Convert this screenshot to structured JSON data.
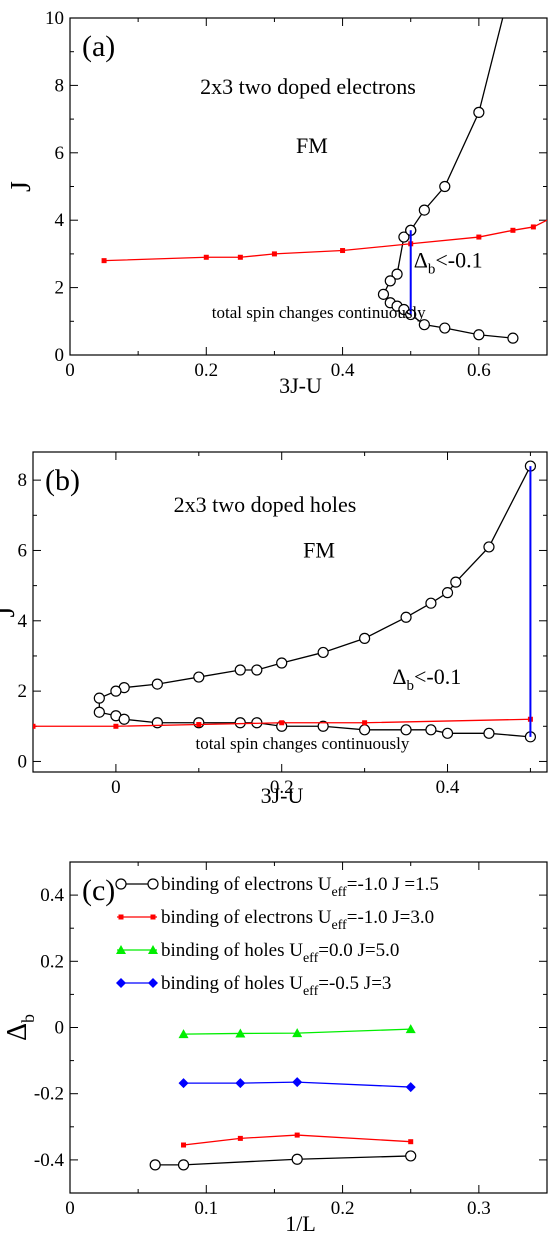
{
  "chart_data": [
    {
      "panel_label": "(a)",
      "type": "line",
      "title": "2x3  two doped electrons",
      "xlabel": "3J-U",
      "ylabel": "J",
      "xlim": [
        0,
        0.7
      ],
      "ylim": [
        0,
        10
      ],
      "xticks": [
        0,
        0.2,
        0.4,
        0.6
      ],
      "xtick_labels": [
        "0",
        "0.2",
        "0.4",
        "0.6"
      ],
      "yticks": [
        0,
        2,
        4,
        6,
        8,
        10
      ],
      "ytick_labels": [
        "0",
        "2",
        "4",
        "6",
        "8",
        "10"
      ],
      "annotations": [
        {
          "id": "fm",
          "text": "FM",
          "x": 0.355,
          "y": 6.0
        },
        {
          "id": "delta",
          "text": "Δ",
          "sub": "b",
          "suffix": "<-0.1",
          "x": 0.555,
          "y": 2.6
        },
        {
          "id": "spin",
          "text": "total spin changes continuously",
          "x": 0.365,
          "y": 1.1
        }
      ],
      "series": [
        {
          "style": "black-circles",
          "x": [
            0.5,
            0.49,
            0.48,
            0.47,
            0.46,
            0.47,
            0.48,
            0.49,
            0.5,
            0.52,
            0.55,
            0.6,
            0.65
          ],
          "y": [
            3.7,
            3.5,
            2.4,
            2.2,
            1.8,
            1.55,
            1.45,
            1.35,
            1.2,
            0.9,
            0.8,
            0.6,
            0.5
          ]
        },
        {
          "style": "black-circles-upper",
          "x": [
            0.5,
            0.52,
            0.55,
            0.6,
            0.635
          ],
          "y": [
            3.7,
            4.3,
            5.0,
            7.2,
            10.0
          ],
          "marker_count": 4
        },
        {
          "style": "red-squares",
          "x": [
            0.05,
            0.2,
            0.25,
            0.3,
            0.4,
            0.5,
            0.6,
            0.65,
            0.68,
            0.7
          ],
          "y": [
            2.8,
            2.9,
            2.9,
            3.0,
            3.1,
            3.3,
            3.5,
            3.7,
            3.8,
            4.0
          ],
          "marker_count": 9
        },
        {
          "style": "blue-vertical",
          "x": [
            0.5,
            0.5
          ],
          "y": [
            1.2,
            3.7
          ]
        }
      ]
    },
    {
      "panel_label": "(b)",
      "type": "line",
      "title": "2x3 two doped holes",
      "xlabel": "3J-U",
      "ylabel": "J",
      "xlim": [
        -0.1,
        0.52
      ],
      "ylim": [
        -0.3,
        8.8
      ],
      "xticks": [
        0,
        0.2,
        0.4
      ],
      "xtick_labels": [
        "0",
        "0.2",
        "0.4"
      ],
      "yticks": [
        0,
        2,
        4,
        6,
        8
      ],
      "ytick_labels": [
        "0",
        "2",
        "4",
        "6",
        "8"
      ],
      "annotations": [
        {
          "id": "fm",
          "text": "FM",
          "x": 0.245,
          "y": 5.8
        },
        {
          "id": "delta",
          "text": "Δ",
          "sub": "b",
          "suffix": "<-0.1",
          "x": 0.375,
          "y": 2.2
        },
        {
          "id": "spin",
          "text": "total spin changes continuously",
          "x": 0.225,
          "y": 0.35
        }
      ],
      "series": [
        {
          "style": "black-circles",
          "x": [
            0.5,
            0.45,
            0.41,
            0.4,
            0.38,
            0.35,
            0.3,
            0.25,
            0.2,
            0.17,
            0.15,
            0.1,
            0.05,
            0.01,
            0.0,
            -0.02,
            -0.02,
            0.0,
            0.01,
            0.05,
            0.1,
            0.15,
            0.17,
            0.2,
            0.25,
            0.3,
            0.35,
            0.38,
            0.4,
            0.45,
            0.5
          ],
          "y": [
            8.4,
            6.1,
            5.1,
            4.8,
            4.5,
            4.1,
            3.5,
            3.1,
            2.8,
            2.6,
            2.6,
            2.4,
            2.2,
            2.1,
            2.0,
            1.8,
            1.4,
            1.3,
            1.2,
            1.1,
            1.1,
            1.1,
            1.1,
            1.0,
            1.0,
            0.9,
            0.9,
            0.9,
            0.8,
            0.8,
            0.7
          ]
        },
        {
          "style": "red-squares",
          "x": [
            -0.1,
            0.0,
            0.1,
            0.2,
            0.3,
            0.5
          ],
          "y": [
            1.0,
            1.0,
            1.05,
            1.1,
            1.1,
            1.2
          ]
        },
        {
          "style": "blue-vertical",
          "x": [
            0.5,
            0.5
          ],
          "y": [
            0.7,
            8.4
          ]
        }
      ]
    },
    {
      "panel_label": "(c)",
      "type": "line",
      "xlabel": "1/L",
      "ylabel": "Δ",
      "ylabel_sub": "b",
      "xlim": [
        0,
        0.35
      ],
      "ylim": [
        -0.5,
        0.5
      ],
      "xticks": [
        0,
        0.1,
        0.2,
        0.3
      ],
      "xtick_labels": [
        "0",
        "0.1",
        "0.2",
        "0.3"
      ],
      "yticks": [
        -0.4,
        -0.2,
        0,
        0.2,
        0.4
      ],
      "ytick_labels": [
        "-0.4",
        "-0.2",
        "0",
        "0.2",
        "0.4"
      ],
      "legend_position": "top-right",
      "series": [
        {
          "name": "binding of electrons U",
          "name_sub": "eff",
          "name_tail": "=-1.0 J =1.5",
          "style": "black-circles",
          "color": "#000000",
          "x": [
            0.0625,
            0.0833,
            0.1667,
            0.25
          ],
          "y": [
            -0.415,
            -0.415,
            -0.398,
            -0.388
          ]
        },
        {
          "name": "binding of electrons U",
          "name_sub": "eff",
          "name_tail": "=-1.0 J=3.0",
          "style": "red-squares",
          "color": "#ff0000",
          "x": [
            0.0833,
            0.125,
            0.1667,
            0.25
          ],
          "y": [
            -0.355,
            -0.335,
            -0.325,
            -0.345
          ]
        },
        {
          "name": "binding of holes U",
          "name_sub": "eff",
          "name_tail": "=0.0 J=5.0",
          "style": "green-triangles",
          "color": "#00ee00",
          "x": [
            0.0833,
            0.125,
            0.1667,
            0.25
          ],
          "y": [
            -0.02,
            -0.018,
            -0.017,
            -0.005
          ]
        },
        {
          "name": "binding of holes U",
          "name_sub": "eff",
          "name_tail": "=-0.5 J=3",
          "style": "blue-diamonds",
          "color": "#0000ff",
          "x": [
            0.0833,
            0.125,
            0.1667,
            0.25
          ],
          "y": [
            -0.168,
            -0.168,
            -0.165,
            -0.18
          ]
        }
      ]
    }
  ],
  "colors": {
    "black_series": "#000000",
    "red_series": "#ff0000",
    "blue_line": "#0000ff",
    "green_series": "#00ee00"
  }
}
